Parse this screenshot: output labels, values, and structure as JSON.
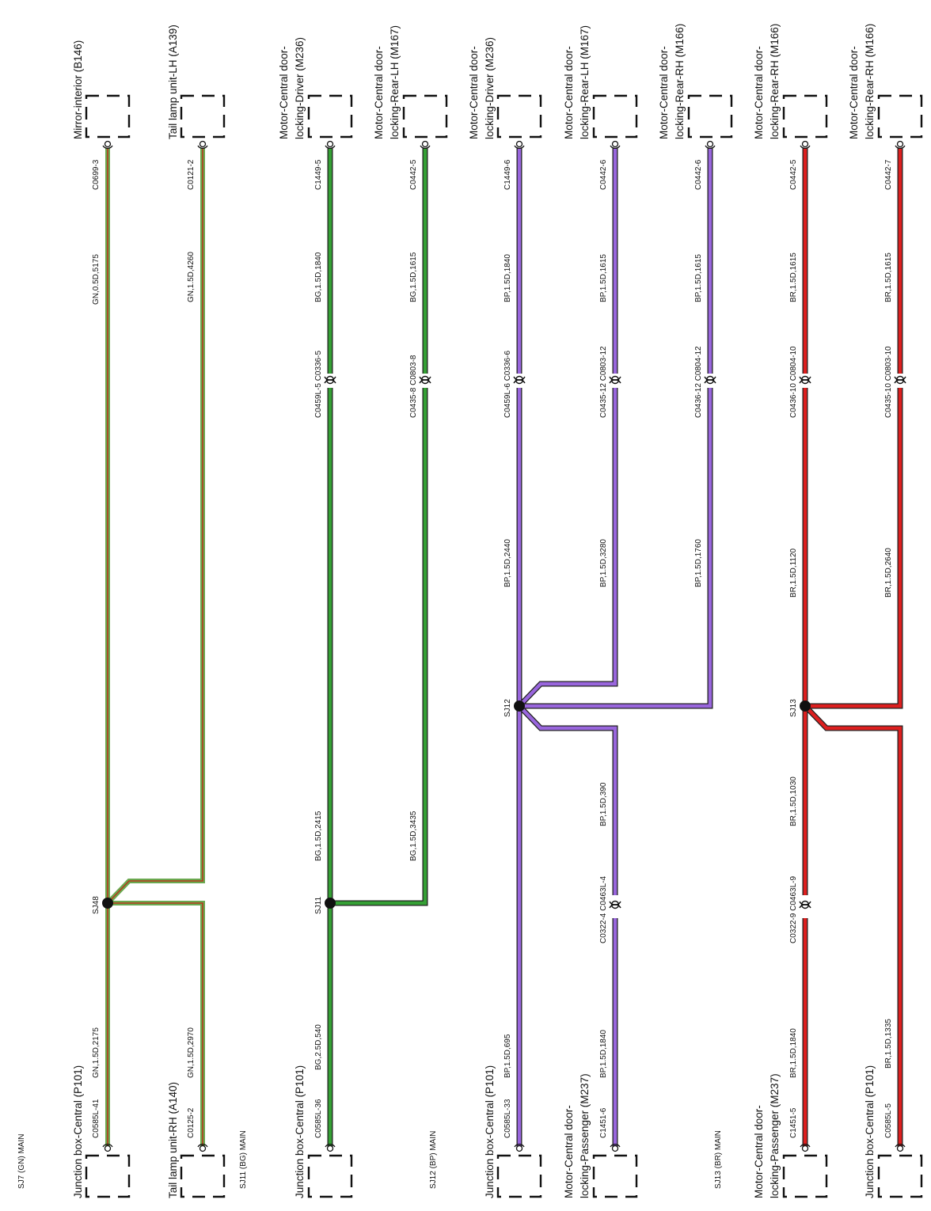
{
  "colors": {
    "GN": "#6aa84f",
    "BG": "#35a035",
    "BP": "#9966dd",
    "BR": "#dd1f1f",
    "GN_core": "#b83a1e",
    "outline": "#222222"
  },
  "subsystem_labels": [
    "SJ7 (GN) MAIN",
    "SJ11 (BG) MAIN",
    "SJ12 (BP) MAIN",
    "SJ13 (BR) MAIN"
  ],
  "top_components": [
    {
      "lines": [
        "Mirror-interior (B146)"
      ]
    },
    {
      "lines": [
        "Tail lamp unit-LH (A139)"
      ]
    },
    {
      "lines": [
        "Motor-Central door-",
        "locking-Driver (M236)"
      ]
    },
    {
      "lines": [
        "Motor-Central door-",
        "locking-Rear-LH (M167)"
      ]
    },
    {
      "lines": [
        "Motor-Central door-",
        "locking-Driver (M236)"
      ]
    },
    {
      "lines": [
        "Motor-Central door-",
        "locking-Rear-LH (M167)"
      ]
    },
    {
      "lines": [
        "Motor-Central door-",
        "locking-Rear-RH (M166)"
      ]
    },
    {
      "lines": [
        "Motor-Central door-",
        "locking-Rear-RH (M166)"
      ]
    },
    {
      "lines": [
        "Motor-Central door-",
        "locking-Rear-RH (M166)"
      ]
    }
  ],
  "bottom_components": [
    {
      "lines": [
        "Junction box-Central (P101)"
      ]
    },
    {
      "lines": [
        "Tail lamp unit-RH (A140)"
      ]
    },
    {
      "lines": [
        "Junction box-Central (P101)"
      ]
    },
    {
      "lines": [
        "Junction box-Central (P101)"
      ]
    },
    {
      "lines": [
        "Motor-Central door-",
        "locking-Passenger (M237)"
      ]
    },
    {
      "lines": [
        "Motor-Central door-",
        "locking-Passenger (M237)"
      ]
    },
    {
      "lines": [
        "Junction box-Central (P101)"
      ]
    }
  ],
  "top_pins": [
    "C0699-3",
    "C0121-2",
    "C1449-5",
    "C0442-5",
    "C1449-6",
    "C0442-6",
    "C0442-6",
    "C0442-5",
    "C0442-7"
  ],
  "bottom_pins": [
    "C0585L-41",
    "C0125-2",
    "C0585L-36",
    "C0585L-33",
    "C1451-6",
    "C1451-5",
    "C0585L-5"
  ],
  "inline_connectors": [
    "C0459L-5 C0336-5",
    "C0435-8 C0803-8",
    "C0459L-6 C0336-6",
    "C0435-12 C0803-12",
    "C0436-12 C0804-12",
    "C0436-10 C0804-10",
    "C0435-10 C0803-10",
    "C0322-4 C0463L-4",
    "C0322-9 C0463L-9"
  ],
  "splices": [
    "SJ48",
    "SJ11",
    "SJ12",
    "SJ13"
  ],
  "wire_labels": [
    "GN,0.5D,5175",
    "GN,1.5D,4260",
    "GN,1.5D,2175",
    "GN,1.5D,2970",
    "BG,1.5D,1840",
    "BG,1.5D,1615",
    "BG,1.5D,2415",
    "BG,1.5D,3435",
    "BG,2.5D,540",
    "BP,1.5D,1840",
    "BP,1.5D,1615",
    "BP,1.5D,1615",
    "BP,1.5D,2440",
    "BP,1.5D,3280",
    "BP,1.5D,1760",
    "BP,1.5D,390",
    "BP,1.5D,695",
    "BP,1.5D,1840",
    "BR,1.5D,1615",
    "BR,1.5D,1615",
    "BR,1.5D,1120",
    "BR,1.5D,2640",
    "BR,1.5D,1030",
    "BR,1.5D,1840",
    "BR,1.5D,1335"
  ]
}
